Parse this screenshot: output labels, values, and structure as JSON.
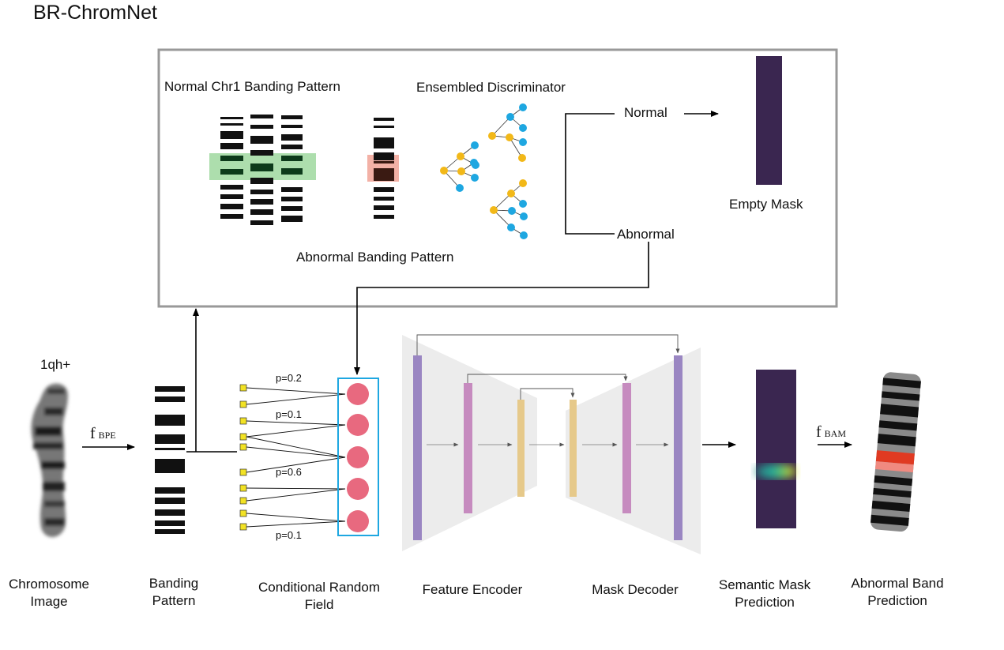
{
  "title": "BR-ChromNet",
  "top_panel": {
    "normal_pattern_label": "Normal Chr1 Banding Pattern",
    "abnormal_pattern_label": "Abnormal Banding Pattern",
    "discriminator_label": "Ensembled Discriminator",
    "normal_label": "Normal",
    "abnormal_label": "Abnormal",
    "empty_mask_label": "Empty Mask"
  },
  "pipeline": {
    "input_tag": "1qh+",
    "f_bpe": {
      "f": "f",
      "sub": "BPE"
    },
    "f_bam": {
      "f": "f",
      "sub": "BAM"
    },
    "crf_probs": [
      "p=0.2",
      "p=0.1",
      "p=0.6",
      "p=0.1"
    ]
  },
  "bottom_labels": {
    "chromosome": [
      "Chromosome",
      "Image"
    ],
    "banding": [
      "Banding",
      "Pattern"
    ],
    "crf": [
      "Conditional Random",
      "Field"
    ],
    "encoder": "Feature Encoder",
    "decoder": "Mask Decoder",
    "semantic": [
      "Semantic Mask",
      "Prediction"
    ],
    "abnormal_band": [
      "Abnormal Band",
      "Prediction"
    ]
  },
  "colors": {
    "panel_border": "#999999",
    "tree_node_yellow": "#f2b818",
    "tree_node_blue": "#1ea7e1",
    "crf_node": "#e8697f",
    "crf_box": "#1ea7e1",
    "input_square": "#f2e224",
    "mask_dark": "#3a2650",
    "encoder_purple": "#9a86c2",
    "encoder_pink": "#c68bbf",
    "encoder_tan": "#e6c98a",
    "normal_highlight": "#9fd89f",
    "abnormal_highlight": "#f2a89c",
    "abnormal_band_red": "#e03a22",
    "abnormal_band_pink": "#f08a80"
  }
}
